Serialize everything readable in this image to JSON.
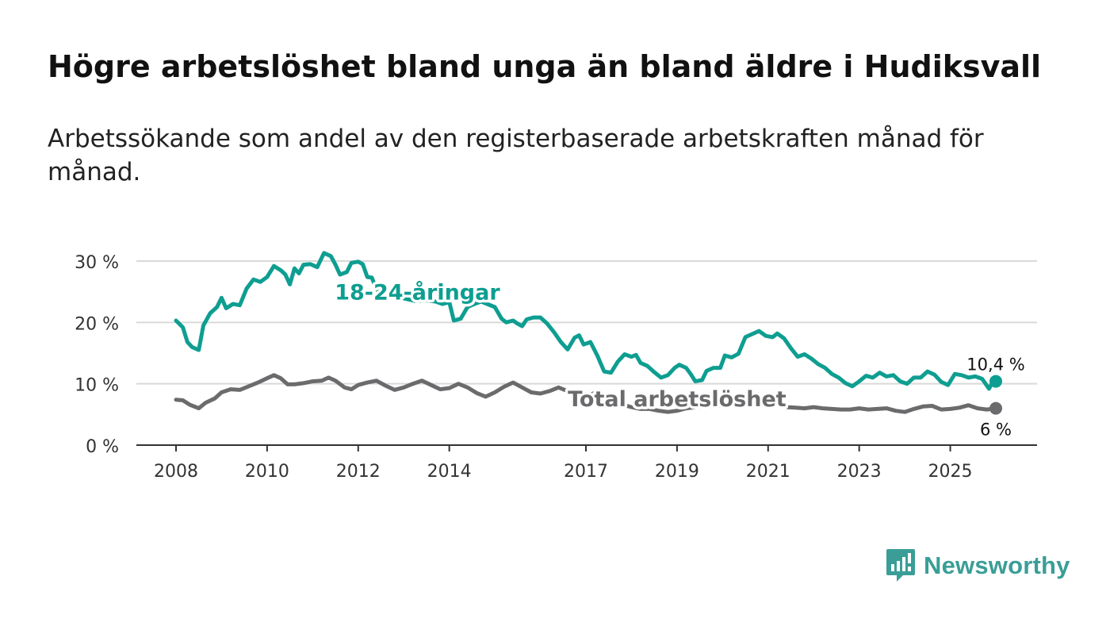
{
  "title": "Högre arbetslöshet bland unga än bland äldre i Hudiksvall",
  "subtitle": "Arbetssökande som andel av den registerbaserade arbetskraften månad för månad.",
  "brand": {
    "name": "Newsworthy",
    "icon": "bar-chart-speech-bubble-icon",
    "color": "#3a9e97"
  },
  "chart_data": {
    "type": "line",
    "title": "Högre arbetslöshet bland unga än bland äldre i Hudiksvall",
    "xlabel": "",
    "ylabel": "",
    "xlim": [
      2008.0,
      2026.0
    ],
    "ylim": [
      0,
      30
    ],
    "yticks": [
      0,
      10,
      20,
      30
    ],
    "ytick_labels": [
      "0 %",
      "10 %",
      "20 %",
      "30 %"
    ],
    "xticks": [
      2008,
      2010,
      2012,
      2014,
      2017,
      2019,
      2021,
      2023,
      2025
    ],
    "xtick_labels": [
      "2008",
      "2010",
      "2012",
      "2014",
      "2017",
      "2019",
      "2021",
      "2023",
      "2025"
    ],
    "grid": true,
    "series": [
      {
        "name": "18-24-åringar",
        "color": "#0e9e91",
        "end_label": "10,4 %",
        "points": [
          [
            2008.0,
            20.3
          ],
          [
            2008.15,
            19.2
          ],
          [
            2008.25,
            16.8
          ],
          [
            2008.35,
            16.0
          ],
          [
            2008.5,
            15.5
          ],
          [
            2008.6,
            19.5
          ],
          [
            2008.75,
            21.5
          ],
          [
            2008.9,
            22.5
          ],
          [
            2009.0,
            24.0
          ],
          [
            2009.1,
            22.3
          ],
          [
            2009.25,
            23.0
          ],
          [
            2009.4,
            22.8
          ],
          [
            2009.55,
            25.5
          ],
          [
            2009.7,
            27.0
          ],
          [
            2009.85,
            26.6
          ],
          [
            2010.0,
            27.4
          ],
          [
            2010.15,
            29.2
          ],
          [
            2010.3,
            28.5
          ],
          [
            2010.4,
            27.8
          ],
          [
            2010.5,
            26.2
          ],
          [
            2010.6,
            28.8
          ],
          [
            2010.7,
            28.0
          ],
          [
            2010.8,
            29.4
          ],
          [
            2010.95,
            29.5
          ],
          [
            2011.1,
            29.0
          ],
          [
            2011.25,
            31.3
          ],
          [
            2011.4,
            30.8
          ],
          [
            2011.5,
            29.4
          ],
          [
            2011.6,
            27.8
          ],
          [
            2011.75,
            28.2
          ],
          [
            2011.85,
            29.7
          ],
          [
            2012.0,
            29.9
          ],
          [
            2012.1,
            29.5
          ],
          [
            2012.2,
            27.4
          ],
          [
            2012.3,
            27.3
          ],
          [
            2012.4,
            25.4
          ],
          [
            2012.5,
            24.8
          ],
          [
            2013.25,
            23.5
          ],
          [
            2013.5,
            23.6
          ],
          [
            2013.7,
            23.4
          ],
          [
            2013.85,
            23.0
          ],
          [
            2014.0,
            23.3
          ],
          [
            2014.1,
            20.3
          ],
          [
            2014.25,
            20.6
          ],
          [
            2014.4,
            22.5
          ],
          [
            2014.55,
            23.0
          ],
          [
            2014.7,
            23.4
          ],
          [
            2015.0,
            22.5
          ],
          [
            2015.15,
            20.6
          ],
          [
            2015.25,
            20.0
          ],
          [
            2015.4,
            20.3
          ],
          [
            2015.5,
            19.8
          ],
          [
            2015.6,
            19.4
          ],
          [
            2015.7,
            20.5
          ],
          [
            2015.85,
            20.8
          ],
          [
            2016.0,
            20.8
          ],
          [
            2016.15,
            19.8
          ],
          [
            2016.3,
            18.4
          ],
          [
            2016.45,
            16.8
          ],
          [
            2016.6,
            15.6
          ],
          [
            2016.75,
            17.5
          ],
          [
            2016.85,
            17.9
          ],
          [
            2016.95,
            16.4
          ],
          [
            2017.1,
            16.8
          ],
          [
            2017.25,
            14.6
          ],
          [
            2017.4,
            12.0
          ],
          [
            2017.55,
            11.8
          ],
          [
            2017.7,
            13.6
          ],
          [
            2017.85,
            14.8
          ],
          [
            2018.0,
            14.4
          ],
          [
            2018.1,
            14.7
          ],
          [
            2018.2,
            13.4
          ],
          [
            2018.35,
            12.9
          ],
          [
            2018.5,
            11.9
          ],
          [
            2018.65,
            11.0
          ],
          [
            2018.8,
            11.4
          ],
          [
            2018.95,
            12.6
          ],
          [
            2019.05,
            13.1
          ],
          [
            2019.2,
            12.6
          ],
          [
            2019.3,
            11.6
          ],
          [
            2019.4,
            10.4
          ],
          [
            2019.55,
            10.6
          ],
          [
            2019.65,
            12.1
          ],
          [
            2019.8,
            12.6
          ],
          [
            2019.95,
            12.6
          ],
          [
            2020.05,
            14.6
          ],
          [
            2020.2,
            14.3
          ],
          [
            2020.35,
            14.9
          ],
          [
            2020.5,
            17.6
          ],
          [
            2020.65,
            18.1
          ],
          [
            2020.8,
            18.6
          ],
          [
            2020.95,
            17.8
          ],
          [
            2021.1,
            17.6
          ],
          [
            2021.2,
            18.2
          ],
          [
            2021.35,
            17.4
          ],
          [
            2021.5,
            15.8
          ],
          [
            2021.65,
            14.4
          ],
          [
            2021.8,
            14.8
          ],
          [
            2021.95,
            14.1
          ],
          [
            2022.1,
            13.2
          ],
          [
            2022.25,
            12.6
          ],
          [
            2022.4,
            11.6
          ],
          [
            2022.55,
            11.0
          ],
          [
            2022.7,
            10.1
          ],
          [
            2022.85,
            9.6
          ],
          [
            2023.0,
            10.4
          ],
          [
            2023.15,
            11.3
          ],
          [
            2023.3,
            11.0
          ],
          [
            2023.45,
            11.8
          ],
          [
            2023.6,
            11.2
          ],
          [
            2023.75,
            11.4
          ],
          [
            2023.9,
            10.4
          ],
          [
            2024.05,
            10.0
          ],
          [
            2024.2,
            11.0
          ],
          [
            2024.35,
            11.0
          ],
          [
            2024.5,
            12.0
          ],
          [
            2024.65,
            11.5
          ],
          [
            2024.8,
            10.3
          ],
          [
            2024.95,
            9.8
          ],
          [
            2025.1,
            11.6
          ],
          [
            2025.25,
            11.4
          ],
          [
            2025.4,
            11.0
          ],
          [
            2025.55,
            11.2
          ],
          [
            2025.7,
            10.8
          ],
          [
            2025.85,
            9.2
          ],
          [
            2025.95,
            10.5
          ],
          [
            2026.0,
            10.4
          ]
        ]
      },
      {
        "name": "Total arbetslöshet",
        "color": "#6b6a6c",
        "end_label": "6 %",
        "points": [
          [
            2008.0,
            7.4
          ],
          [
            2008.15,
            7.3
          ],
          [
            2008.3,
            6.6
          ],
          [
            2008.5,
            6.0
          ],
          [
            2008.65,
            6.9
          ],
          [
            2008.85,
            7.6
          ],
          [
            2009.0,
            8.6
          ],
          [
            2009.2,
            9.1
          ],
          [
            2009.4,
            9.0
          ],
          [
            2009.6,
            9.6
          ],
          [
            2009.8,
            10.2
          ],
          [
            2010.0,
            10.9
          ],
          [
            2010.15,
            11.4
          ],
          [
            2010.3,
            10.9
          ],
          [
            2010.45,
            9.9
          ],
          [
            2010.6,
            9.9
          ],
          [
            2010.8,
            10.1
          ],
          [
            2011.0,
            10.4
          ],
          [
            2011.2,
            10.5
          ],
          [
            2011.35,
            11.0
          ],
          [
            2011.5,
            10.5
          ],
          [
            2011.7,
            9.4
          ],
          [
            2011.85,
            9.1
          ],
          [
            2012.0,
            9.8
          ],
          [
            2012.2,
            10.2
          ],
          [
            2012.4,
            10.5
          ],
          [
            2012.6,
            9.7
          ],
          [
            2012.8,
            9.0
          ],
          [
            2013.0,
            9.4
          ],
          [
            2013.2,
            10.0
          ],
          [
            2013.4,
            10.5
          ],
          [
            2013.6,
            9.8
          ],
          [
            2013.8,
            9.1
          ],
          [
            2014.0,
            9.3
          ],
          [
            2014.2,
            10.0
          ],
          [
            2014.4,
            9.4
          ],
          [
            2014.6,
            8.5
          ],
          [
            2014.8,
            7.9
          ],
          [
            2015.0,
            8.6
          ],
          [
            2015.2,
            9.5
          ],
          [
            2015.4,
            10.2
          ],
          [
            2015.6,
            9.4
          ],
          [
            2015.8,
            8.6
          ],
          [
            2016.0,
            8.4
          ],
          [
            2016.2,
            8.8
          ],
          [
            2016.4,
            9.4
          ],
          [
            2016.6,
            8.8
          ],
          [
            2016.8,
            7.6
          ],
          [
            2017.0,
            8.0
          ],
          [
            2017.2,
            8.5
          ],
          [
            2017.4,
            8.0
          ],
          [
            2017.6,
            7.2
          ],
          [
            2017.8,
            6.6
          ],
          [
            2018.0,
            6.2
          ],
          [
            2018.2,
            5.9
          ],
          [
            2018.4,
            5.9
          ],
          [
            2018.6,
            5.6
          ],
          [
            2018.8,
            5.4
          ],
          [
            2019.0,
            5.6
          ],
          [
            2019.2,
            6.0
          ],
          [
            2019.4,
            6.2
          ],
          [
            2019.6,
            6.3
          ],
          [
            2019.8,
            6.4
          ],
          [
            2020.0,
            6.5
          ],
          [
            2020.2,
            6.9
          ],
          [
            2020.4,
            7.5
          ],
          [
            2020.6,
            7.3
          ],
          [
            2020.8,
            7.1
          ],
          [
            2021.0,
            6.9
          ],
          [
            2021.2,
            6.6
          ],
          [
            2021.4,
            6.2
          ],
          [
            2021.6,
            6.1
          ],
          [
            2021.8,
            6.0
          ],
          [
            2022.0,
            6.2
          ],
          [
            2022.2,
            6.0
          ],
          [
            2022.4,
            5.9
          ],
          [
            2022.6,
            5.8
          ],
          [
            2022.8,
            5.8
          ],
          [
            2023.0,
            6.0
          ],
          [
            2023.2,
            5.8
          ],
          [
            2023.4,
            5.9
          ],
          [
            2023.6,
            6.0
          ],
          [
            2023.8,
            5.6
          ],
          [
            2024.0,
            5.4
          ],
          [
            2024.2,
            5.9
          ],
          [
            2024.4,
            6.3
          ],
          [
            2024.6,
            6.4
          ],
          [
            2024.8,
            5.8
          ],
          [
            2025.0,
            5.9
          ],
          [
            2025.2,
            6.1
          ],
          [
            2025.4,
            6.5
          ],
          [
            2025.6,
            6.0
          ],
          [
            2025.8,
            5.8
          ],
          [
            2026.0,
            6.0
          ]
        ]
      }
    ],
    "annotations": [
      {
        "text": "18-24-åringar",
        "series": "18-24-åringar",
        "x": 2013.3,
        "y": 24.9
      },
      {
        "text": "Total arbetslöshet",
        "series": "Total arbetslöshet",
        "x": 2019.0,
        "y": 7.5
      }
    ],
    "legend": "inline labels"
  }
}
